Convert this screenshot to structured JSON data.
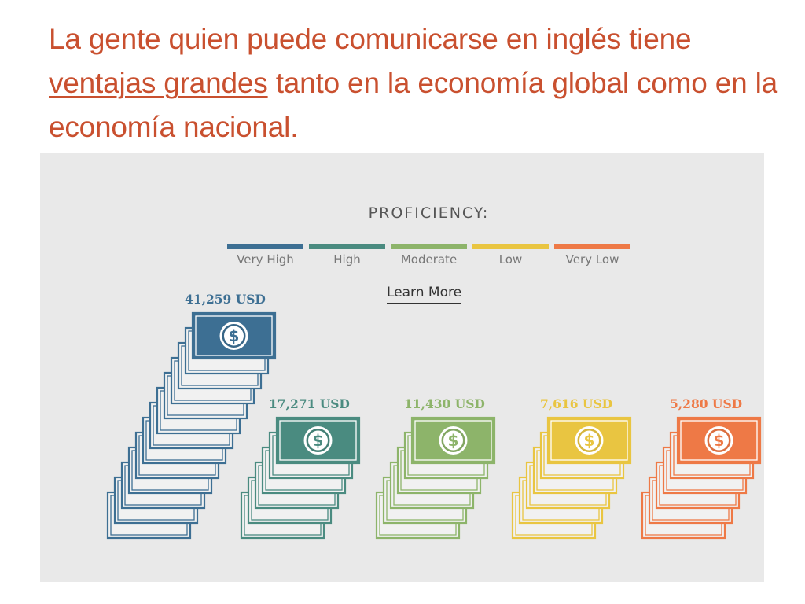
{
  "slide": {
    "title_before": "La gente quien puede comunicarse en inglés tiene ",
    "title_underlined": "ventajas grandes",
    "title_after": " tanto en la economía global como en la economía nacional."
  },
  "legend": {
    "title": "PROFICIENCY:",
    "learn_more": "Learn More"
  },
  "colors": {
    "very_high": "#3d6f93",
    "high": "#4a8b80",
    "moderate": "#8db46a",
    "low": "#e9c541",
    "very_low": "#ee7946",
    "title": "#c9502f"
  },
  "chart_data": {
    "type": "bar",
    "title": "",
    "categories": [
      "Very High",
      "High",
      "Moderate",
      "Low",
      "Very Low"
    ],
    "values": [
      41259,
      17271,
      11430,
      7616,
      5280
    ],
    "value_labels": [
      "41,259 USD",
      "17,271 USD",
      "11,430 USD",
      "7,616 USD",
      "5,280 USD"
    ],
    "unit": "USD",
    "legend_position": "top-center",
    "grid": false,
    "colors": [
      "#3d6f93",
      "#4a8b80",
      "#8db46a",
      "#e9c541",
      "#ee7946"
    ],
    "icon": "dollar-bill-stack-icon"
  }
}
